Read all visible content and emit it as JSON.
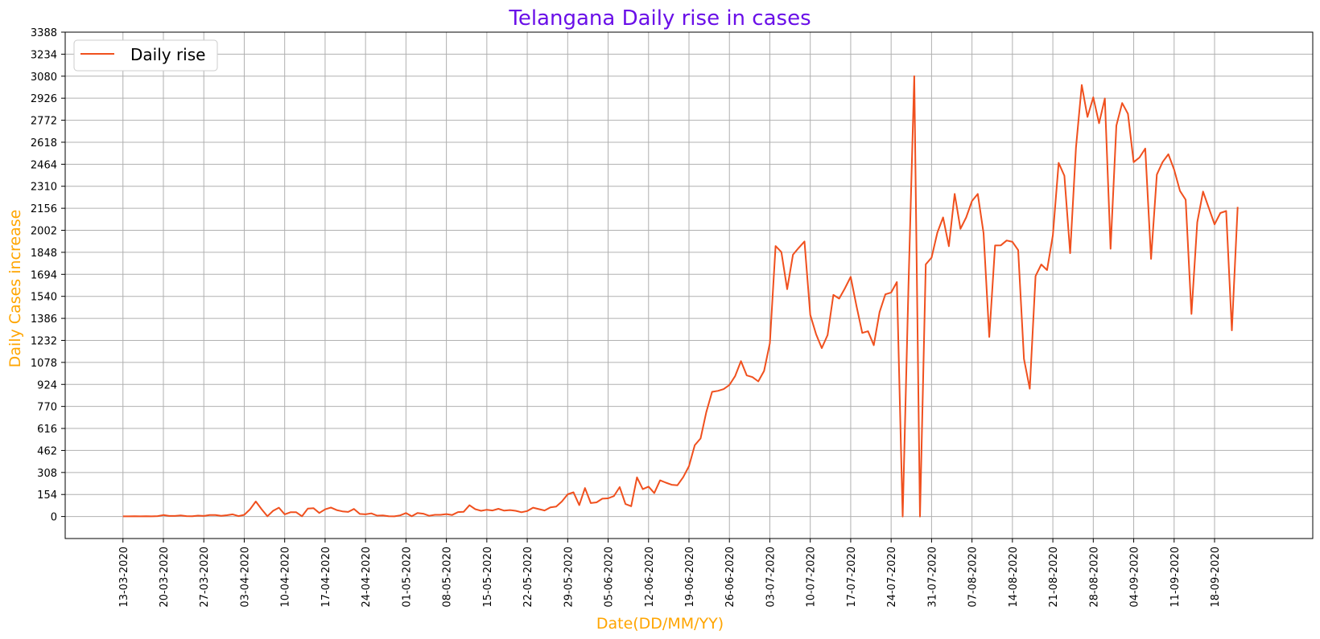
{
  "colors": {
    "title": "#6a0fe8",
    "axis_label": "#ffa500",
    "line": "#f0501e",
    "grid": "#b0b0b0",
    "axes": "#000000"
  },
  "chart_data": {
    "type": "line",
    "title": "Telangana Daily rise in cases",
    "xlabel": "Date(DD/MM/YY)",
    "ylabel": "Daily Cases increase",
    "start_date": "13-03-2020",
    "yticks": [
      0,
      154,
      308,
      462,
      616,
      770,
      924,
      1078,
      1232,
      1386,
      1540,
      1694,
      1848,
      2002,
      2156,
      2310,
      2464,
      2618,
      2772,
      2926,
      3080,
      3234,
      3388
    ],
    "xticks": [
      "13-03-2020",
      "20-03-2020",
      "27-03-2020",
      "03-04-2020",
      "10-04-2020",
      "17-04-2020",
      "24-04-2020",
      "01-05-2020",
      "08-05-2020",
      "15-05-2020",
      "22-05-2020",
      "29-05-2020",
      "05-06-2020",
      "12-06-2020",
      "19-06-2020",
      "26-06-2020",
      "03-07-2020",
      "10-07-2020",
      "17-07-2020",
      "24-07-2020",
      "31-07-2020",
      "07-08-2020",
      "14-08-2020",
      "21-08-2020",
      "28-08-2020",
      "04-09-2020",
      "11-09-2020",
      "18-09-2020"
    ],
    "ylim": [
      -154,
      3388
    ],
    "xlim": [
      -10,
      206
    ],
    "grid": true,
    "legend_position": "top-left",
    "series": [
      {
        "name": "Daily rise",
        "values": [
          1,
          1,
          2,
          1,
          2,
          1,
          3,
          10,
          4,
          4,
          8,
          3,
          2,
          6,
          4,
          10,
          10,
          5,
          9,
          15,
          3,
          12,
          50,
          105,
          51,
          2,
          40,
          62,
          15,
          30,
          30,
          2,
          55,
          58,
          25,
          50,
          63,
          45,
          36,
          32,
          53,
          18,
          15,
          22,
          6,
          8,
          2,
          1,
          8,
          24,
          2,
          25,
          20,
          5,
          12,
          12,
          17,
          11,
          31,
          33,
          79,
          51,
          40,
          47,
          42,
          54,
          41,
          45,
          40,
          30,
          38,
          62,
          52,
          42,
          64,
          70,
          105,
          155,
          169,
          80,
          199,
          94,
          99,
          125,
          127,
          143,
          206,
          87,
          72,
          274,
          191,
          209,
          164,
          253,
          237,
          222,
          218,
          275,
          352,
          499,
          546,
          730,
          872,
          879,
          891,
          920,
          983,
          1087,
          987,
          975,
          945,
          1018,
          1213,
          1892,
          1850,
          1590,
          1831,
          1879,
          1924,
          1410,
          1276,
          1178,
          1269,
          1550,
          1524,
          1597,
          1676,
          1473,
          1284,
          1296,
          1198,
          1430,
          1554,
          1567,
          1640,
          0,
          1610,
          3080,
          0,
          1764,
          1811,
          1986,
          2092,
          1891,
          2256,
          2012,
          2092,
          2207,
          2256,
          1982,
          1256,
          1896,
          1897,
          1931,
          1921,
          1863,
          1102,
          894,
          1682,
          1763,
          1724,
          1967,
          2474,
          2384,
          1842,
          2579,
          3018,
          2795,
          2932,
          2751,
          2924,
          1873,
          2734,
          2892,
          2817,
          2479,
          2511,
          2574,
          1802,
          2392,
          2479,
          2534,
          2426,
          2278,
          2216,
          1417,
          2058,
          2273,
          2159,
          2043,
          2123,
          2137,
          1302,
          2166
        ]
      }
    ]
  }
}
